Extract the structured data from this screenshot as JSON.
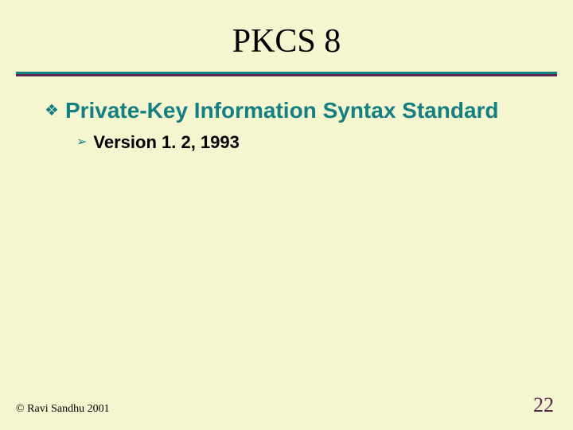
{
  "slide": {
    "title": "PKCS 8",
    "bullets": {
      "level1_text": "Private-Key Information Syntax Standard",
      "level2_text": "Version 1. 2, 1993"
    },
    "footer": {
      "copyright": "© Ravi Sandhu 2001",
      "page_number": "22"
    },
    "colors": {
      "background": "#f5f5d0",
      "accent_teal": "#137f82",
      "accent_plum": "#5a2a55",
      "body_text": "#000000"
    },
    "typography": {
      "title_fontsize": 42,
      "title_family": "Times New Roman",
      "level1_fontsize": 28,
      "level1_weight": 700,
      "level2_fontsize": 22,
      "level2_weight": 700,
      "footer_fontsize": 14,
      "page_fontsize": 26
    },
    "bullet_glyphs": {
      "level1": "❖",
      "level2": "➢"
    }
  }
}
